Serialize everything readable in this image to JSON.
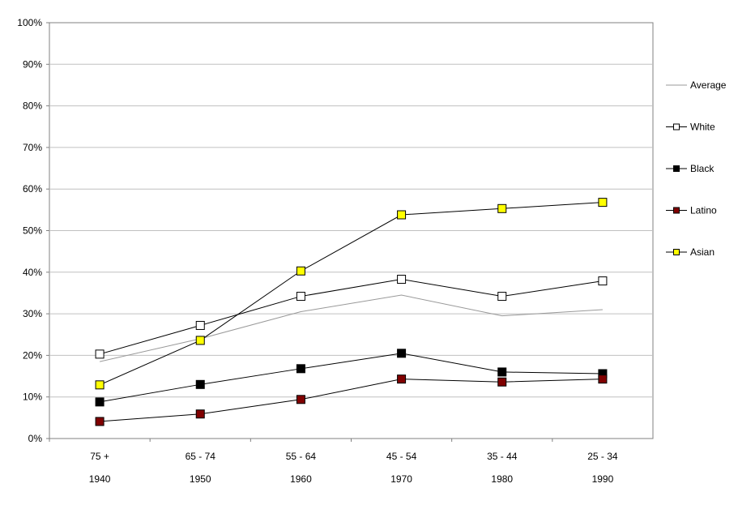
{
  "chart_data": {
    "type": "line",
    "categories": [
      "75 +",
      "65 - 74",
      "55 - 64",
      "45 - 54",
      "35 - 44",
      "25 - 34"
    ],
    "categories_secondary": [
      "1940",
      "1950",
      "1960",
      "1970",
      "1980",
      "1990"
    ],
    "ylim": [
      0,
      100
    ],
    "y_ticks": [
      "0%",
      "10%",
      "20%",
      "30%",
      "40%",
      "50%",
      "60%",
      "70%",
      "80%",
      "90%",
      "100%"
    ],
    "grid": true,
    "legend_position": "right",
    "series": [
      {
        "name": "Average",
        "values": [
          18.5,
          24.0,
          30.5,
          34.5,
          29.5,
          31.0
        ],
        "color": "#999999",
        "marker": "none"
      },
      {
        "name": "White",
        "values": [
          20.3,
          27.2,
          34.2,
          38.3,
          34.2,
          37.9
        ],
        "color": "#000000",
        "marker": "square",
        "marker_fill": "#ffffff"
      },
      {
        "name": "Black",
        "values": [
          8.8,
          13.0,
          16.8,
          20.5,
          16.0,
          15.6
        ],
        "color": "#000000",
        "marker": "square",
        "marker_fill": "#000000"
      },
      {
        "name": "Latino",
        "values": [
          4.1,
          5.9,
          9.4,
          14.3,
          13.6,
          14.3
        ],
        "color": "#000000",
        "marker": "square",
        "marker_fill": "#800000"
      },
      {
        "name": "Asian",
        "values": [
          12.9,
          23.6,
          40.3,
          53.8,
          55.3,
          56.8
        ],
        "color": "#000000",
        "marker": "square",
        "marker_fill": "#ffff00"
      }
    ]
  }
}
